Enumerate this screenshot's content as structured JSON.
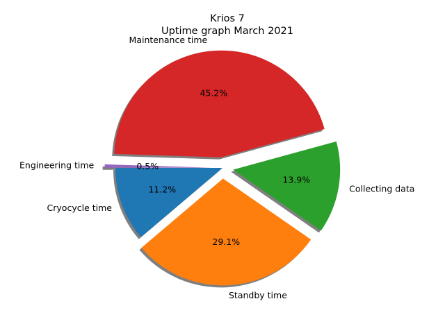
{
  "chart_data": {
    "type": "pie",
    "title": "Krios 7",
    "subtitle": "Uptime graph March 2021",
    "slices": [
      {
        "label": "Cryocycle time",
        "value": 11.2,
        "pct_label": "11.2%",
        "color": "#1f77b4",
        "exploded": false
      },
      {
        "label": "Standby time",
        "value": 29.1,
        "pct_label": "29.1%",
        "color": "#ff7f0e",
        "exploded": true
      },
      {
        "label": "Collecting data",
        "value": 13.9,
        "pct_label": "13.9%",
        "color": "#2ca02c",
        "exploded": true
      },
      {
        "label": "Maintenance time",
        "value": 45.2,
        "pct_label": "45.2%",
        "color": "#d62728",
        "exploded": true
      },
      {
        "label": "Engineering time",
        "value": 0.5,
        "pct_label": "0.5%",
        "color": "#9467bd",
        "exploded": true
      }
    ],
    "start_angle_deg": 180,
    "direction": "counterclockwise",
    "shadow": true
  }
}
